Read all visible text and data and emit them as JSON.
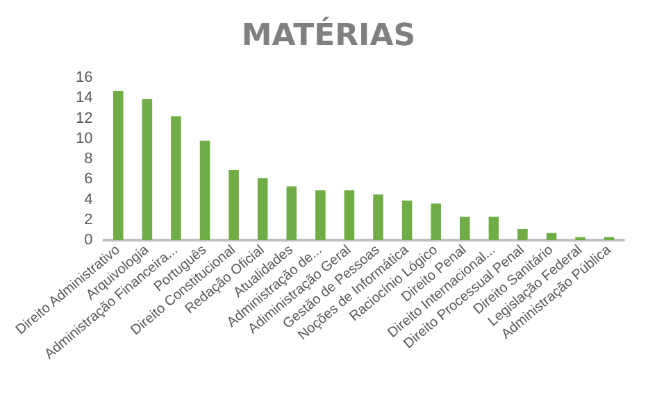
{
  "chart_data": {
    "type": "bar",
    "title": "MATÉRIAS",
    "categories": [
      "Direito Administrativo",
      "Arquivologia",
      "Administração Financeira...",
      "Português",
      "Direito Constitucional",
      "Redação Oficial",
      "Atualidades",
      "Administração de...",
      "Adiministração Geral",
      "Gestão de Pessoas",
      "Noções de Informática",
      "Raciocínio Lógico",
      "Direito Penal",
      "Direito Internacional...",
      "Direito Processual Penal",
      "Direito Sanitário",
      "Legislação Federal",
      "Administração Pública"
    ],
    "values": [
      14.7,
      13.9,
      12.2,
      9.8,
      6.9,
      6.1,
      5.3,
      4.9,
      4.9,
      4.5,
      3.9,
      3.6,
      2.3,
      2.3,
      1.1,
      0.7,
      0.3,
      0.3
    ],
    "color": "#70ad47",
    "ylim": [
      0,
      16
    ],
    "yticks": [
      0,
      2,
      4,
      6,
      8,
      10,
      12,
      14,
      16
    ],
    "grid": false
  }
}
